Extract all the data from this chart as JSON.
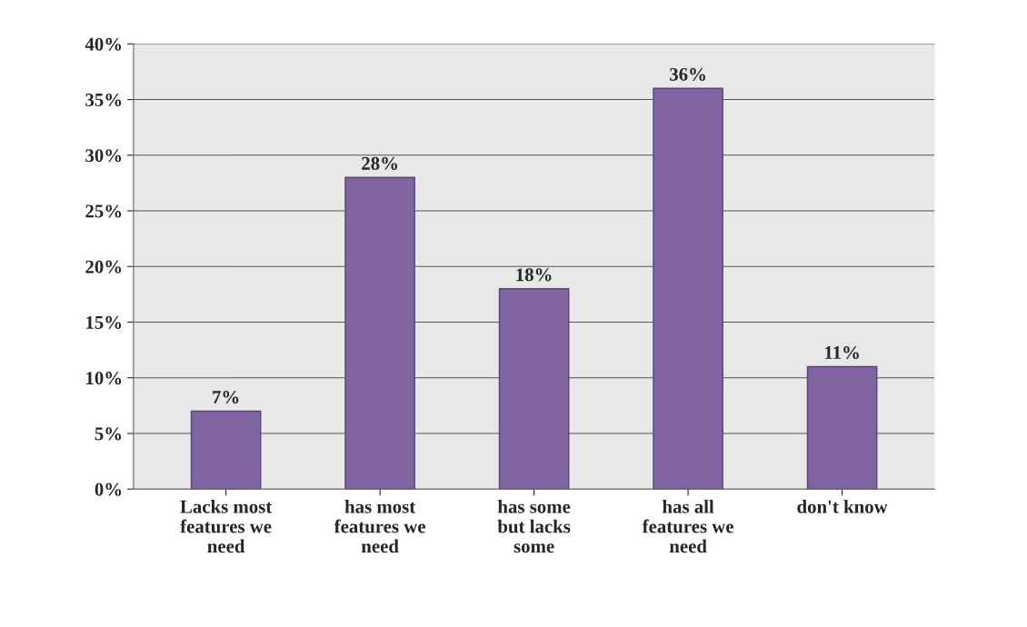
{
  "chart_data": {
    "type": "bar",
    "categories": [
      "Lacks most\nfeatures we\nneed",
      "has most\nfeatures we\nneed",
      "has some\nbut lacks\nsome",
      "has all\nfeatures we\nneed",
      "don't know"
    ],
    "values": [
      7,
      28,
      18,
      36,
      11
    ],
    "value_labels": [
      "7%",
      "28%",
      "18%",
      "36%",
      "11%"
    ],
    "color": "#8064a2",
    "ylim": [
      0,
      40
    ],
    "yticks": [
      {
        "value": 0,
        "label": "0%"
      },
      {
        "value": 5,
        "label": "5%"
      },
      {
        "value": 10,
        "label": "10%"
      },
      {
        "value": 15,
        "label": "15%"
      },
      {
        "value": 20,
        "label": "20%"
      },
      {
        "value": 25,
        "label": "25%"
      },
      {
        "value": 30,
        "label": "30%"
      },
      {
        "value": 35,
        "label": "35%"
      },
      {
        "value": 40,
        "label": "40%"
      }
    ],
    "grid": "y"
  }
}
